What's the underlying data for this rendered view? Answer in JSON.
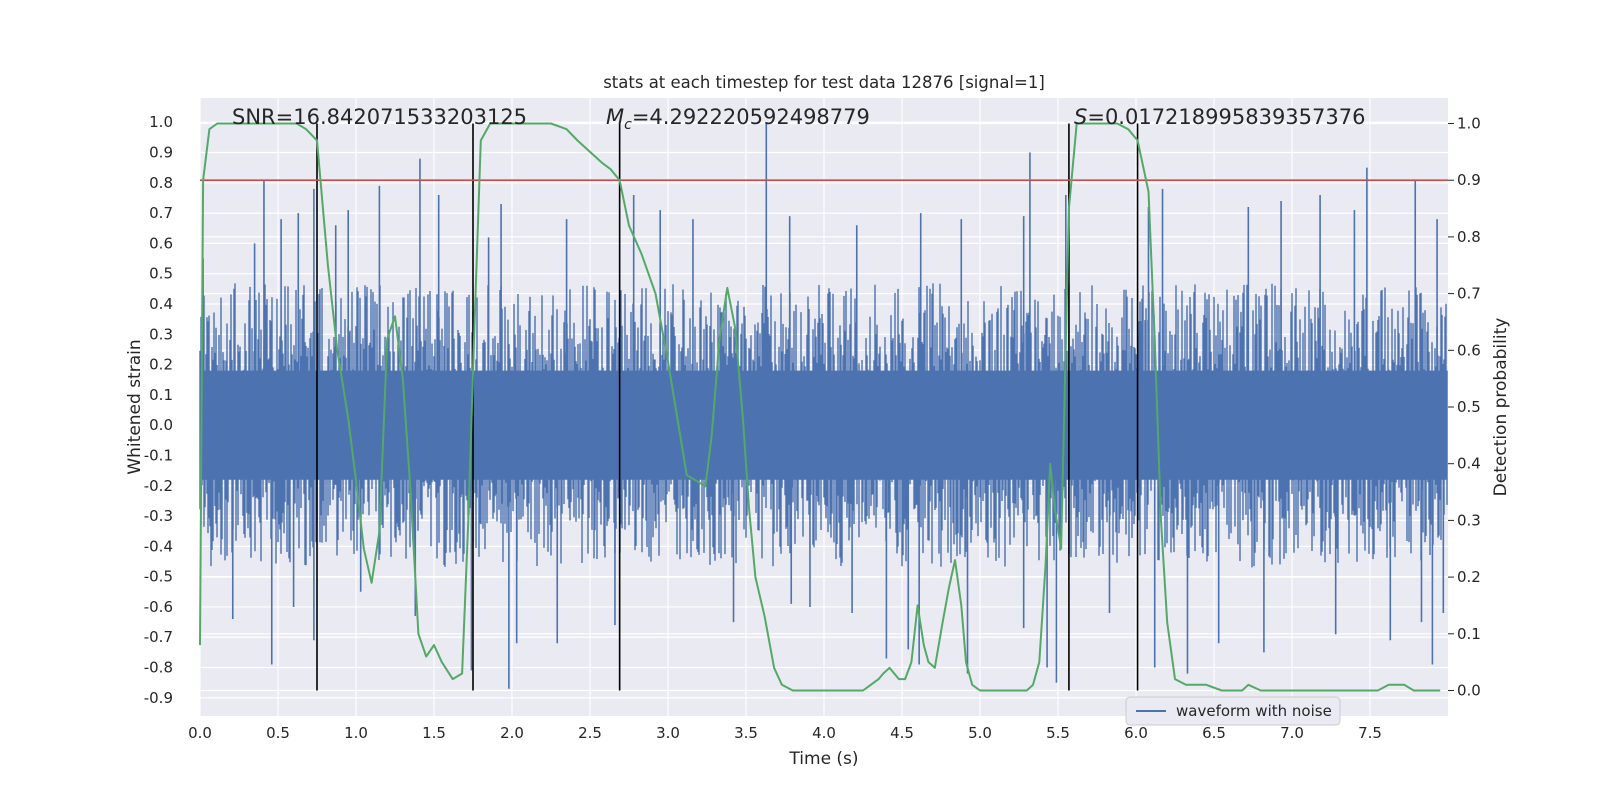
{
  "chart_data": {
    "type": "line",
    "title": "stats at each timestep for test data 12876 [signal=1]",
    "xlabel": "Time (s)",
    "ylabel": "Whitened strain",
    "y2label": "Detection probability",
    "xlim": [
      0.0,
      8.0
    ],
    "ylim": [
      -0.96,
      1.08
    ],
    "y2lim": [
      -0.045,
      1.045
    ],
    "xticks": [
      "0.0",
      "0.5",
      "1.0",
      "1.5",
      "2.0",
      "2.5",
      "3.0",
      "3.5",
      "4.0",
      "4.5",
      "5.0",
      "5.5",
      "6.0",
      "6.5",
      "7.0",
      "7.5"
    ],
    "yticks": [
      "1.0",
      "0.9",
      "0.8",
      "0.7",
      "0.6",
      "0.5",
      "0.4",
      "0.3",
      "0.2",
      "0.1",
      "0.0",
      "-0.1",
      "-0.2",
      "-0.3",
      "-0.4",
      "-0.5",
      "-0.6",
      "-0.7",
      "-0.8",
      "-0.9"
    ],
    "y2ticks": [
      "1.0",
      "0.9",
      "0.8",
      "0.7",
      "0.6",
      "0.5",
      "0.4",
      "0.3",
      "0.2",
      "0.1",
      "0.0"
    ],
    "grid": true,
    "annotations": {
      "snr": "SNR=16.842071533203125",
      "mc_symbol": "M",
      "mc_sub": "c",
      "mc_value": "=4.292220592498779",
      "s_symbol": "S",
      "s_value": "=0.017218995839357376"
    },
    "legend": {
      "label": "waveform with noise",
      "placement": "lower-right"
    },
    "colors": {
      "waveform": "#4c72b0",
      "probability": "#55a868",
      "threshold": "#c44e52",
      "markers": "#000000",
      "background": "#eaeaf2"
    },
    "threshold": 0.9,
    "event_markers_x": [
      0.75,
      1.75,
      2.69,
      5.57,
      6.01
    ],
    "waveform": {
      "name": "waveform with noise",
      "typical_band": [
        -0.42,
        0.42
      ],
      "spikes": [
        [
          0.02,
          0.55
        ],
        [
          0.35,
          0.6
        ],
        [
          0.41,
          0.81
        ],
        [
          0.52,
          0.68
        ],
        [
          0.63,
          0.7
        ],
        [
          0.73,
          0.78
        ],
        [
          0.87,
          0.66
        ],
        [
          0.95,
          0.71
        ],
        [
          1.15,
          0.79
        ],
        [
          1.41,
          0.88
        ],
        [
          1.53,
          0.76
        ],
        [
          1.85,
          0.62
        ],
        [
          1.93,
          0.73
        ],
        [
          2.35,
          0.68
        ],
        [
          2.78,
          0.76
        ],
        [
          2.95,
          0.71
        ],
        [
          3.16,
          0.68
        ],
        [
          3.63,
          1.0
        ],
        [
          3.78,
          0.69
        ],
        [
          4.21,
          0.66
        ],
        [
          4.62,
          0.7
        ],
        [
          4.88,
          0.68
        ],
        [
          5.28,
          0.69
        ],
        [
          5.32,
          0.9
        ],
        [
          5.55,
          0.76
        ],
        [
          6.08,
          0.72
        ],
        [
          6.17,
          0.78
        ],
        [
          6.72,
          0.72
        ],
        [
          6.93,
          0.74
        ],
        [
          7.18,
          0.76
        ],
        [
          7.4,
          0.71
        ],
        [
          7.48,
          0.85
        ],
        [
          7.79,
          0.81
        ],
        [
          7.93,
          0.68
        ],
        [
          0.46,
          -0.79
        ],
        [
          0.21,
          -0.64
        ],
        [
          0.73,
          -0.71
        ],
        [
          0.6,
          -0.6
        ],
        [
          1.03,
          -0.55
        ],
        [
          1.38,
          -0.63
        ],
        [
          1.74,
          -0.81
        ],
        [
          1.98,
          -0.87
        ],
        [
          2.03,
          -0.72
        ],
        [
          2.29,
          -0.72
        ],
        [
          2.66,
          -0.66
        ],
        [
          3.42,
          -0.65
        ],
        [
          3.79,
          -0.59
        ],
        [
          3.91,
          -0.6
        ],
        [
          4.18,
          -0.62
        ],
        [
          4.4,
          -0.77
        ],
        [
          4.54,
          -0.74
        ],
        [
          4.61,
          -0.79
        ],
        [
          4.92,
          -0.82
        ],
        [
          5.28,
          -0.67
        ],
        [
          5.43,
          -0.8
        ],
        [
          5.49,
          -0.85
        ],
        [
          5.83,
          -0.62
        ],
        [
          6.12,
          -0.8
        ],
        [
          6.33,
          -0.82
        ],
        [
          6.53,
          -0.72
        ],
        [
          6.82,
          -0.75
        ],
        [
          7.28,
          -0.69
        ],
        [
          7.63,
          -0.71
        ],
        [
          7.83,
          -0.65
        ],
        [
          7.9,
          -0.79
        ],
        [
          7.97,
          -0.62
        ]
      ]
    },
    "probability": {
      "x": [
        0.0,
        0.02,
        0.06,
        0.11,
        0.2,
        0.35,
        0.5,
        0.62,
        0.68,
        0.75,
        0.82,
        0.88,
        0.95,
        1.0,
        1.05,
        1.1,
        1.15,
        1.2,
        1.25,
        1.3,
        1.35,
        1.4,
        1.45,
        1.5,
        1.55,
        1.62,
        1.68,
        1.72,
        1.76,
        1.8,
        1.86,
        1.92,
        2.0,
        2.1,
        2.25,
        2.35,
        2.42,
        2.5,
        2.58,
        2.63,
        2.69,
        2.75,
        2.83,
        2.92,
        3.0,
        3.06,
        3.12,
        3.18,
        3.24,
        3.28,
        3.33,
        3.38,
        3.43,
        3.48,
        3.52,
        3.56,
        3.62,
        3.68,
        3.73,
        3.8,
        3.95,
        4.15,
        4.25,
        4.3,
        4.35,
        4.38,
        4.42,
        4.48,
        4.52,
        4.56,
        4.6,
        4.64,
        4.67,
        4.71,
        4.76,
        4.8,
        4.84,
        4.88,
        4.91,
        4.95,
        5.0,
        5.08,
        5.15,
        5.22,
        5.3,
        5.34,
        5.38,
        5.42,
        5.45,
        5.48,
        5.52,
        5.57,
        5.62,
        5.68,
        5.72,
        5.8,
        5.88,
        5.95,
        6.01,
        6.08,
        6.12,
        6.16,
        6.2,
        6.25,
        6.32,
        6.45,
        6.55,
        6.62,
        6.68,
        6.72,
        6.8,
        6.9,
        7.0,
        7.2,
        7.3,
        7.45,
        7.55,
        7.62,
        7.68,
        7.72,
        7.78,
        7.85,
        7.95
      ],
      "y": [
        0.08,
        0.9,
        0.99,
        1.0,
        1.0,
        1.0,
        1.0,
        1.0,
        0.99,
        0.97,
        0.75,
        0.6,
        0.48,
        0.37,
        0.25,
        0.19,
        0.28,
        0.62,
        0.66,
        0.55,
        0.35,
        0.1,
        0.06,
        0.08,
        0.05,
        0.02,
        0.03,
        0.3,
        0.65,
        0.97,
        1.0,
        1.0,
        1.0,
        1.0,
        1.0,
        0.99,
        0.97,
        0.95,
        0.93,
        0.92,
        0.9,
        0.82,
        0.77,
        0.7,
        0.58,
        0.48,
        0.38,
        0.37,
        0.36,
        0.45,
        0.62,
        0.71,
        0.64,
        0.48,
        0.32,
        0.2,
        0.13,
        0.04,
        0.01,
        0.0,
        0.0,
        0.0,
        0.0,
        0.01,
        0.02,
        0.03,
        0.04,
        0.02,
        0.02,
        0.05,
        0.15,
        0.08,
        0.05,
        0.04,
        0.12,
        0.18,
        0.23,
        0.15,
        0.05,
        0.01,
        0.0,
        0.0,
        0.0,
        0.0,
        0.0,
        0.01,
        0.05,
        0.22,
        0.4,
        0.32,
        0.25,
        0.85,
        1.0,
        1.0,
        1.0,
        1.0,
        1.0,
        0.99,
        0.97,
        0.88,
        0.62,
        0.3,
        0.12,
        0.02,
        0.01,
        0.01,
        0.0,
        0.0,
        0.0,
        0.01,
        0.0,
        0.0,
        0.0,
        0.0,
        0.0,
        0.0,
        0.0,
        0.01,
        0.01,
        0.01,
        0.0,
        0.0,
        0.0
      ]
    }
  }
}
